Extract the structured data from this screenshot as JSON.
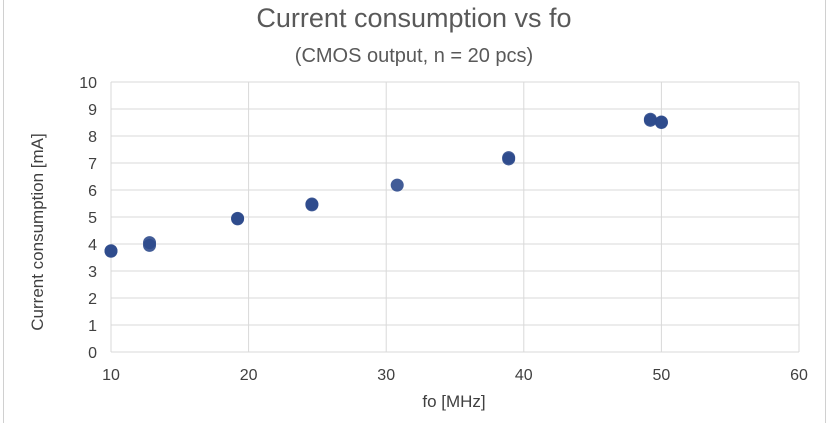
{
  "chart_data": {
    "type": "scatter",
    "title": "Current consumption vs fo",
    "subtitle": "(CMOS output, n = 20 pcs)",
    "xlabel": "fo [MHz]",
    "ylabel": "Current consumption [mA]",
    "xlim": [
      10,
      60
    ],
    "ylim": [
      0,
      10
    ],
    "xticks": [
      10,
      20,
      30,
      40,
      50,
      60
    ],
    "yticks": [
      0,
      1,
      2,
      3,
      4,
      5,
      6,
      7,
      8,
      9,
      10
    ],
    "grid": true,
    "legend": "none",
    "series": [
      {
        "color": "#2e4a8c",
        "points": [
          {
            "x": 10.0,
            "y": 3.75
          },
          {
            "x": 10.0,
            "y": 3.73
          },
          {
            "x": 12.8,
            "y": 3.95
          },
          {
            "x": 12.8,
            "y": 4.05
          },
          {
            "x": 19.2,
            "y": 4.95
          },
          {
            "x": 19.2,
            "y": 4.93
          },
          {
            "x": 24.6,
            "y": 5.48
          },
          {
            "x": 24.6,
            "y": 5.45
          },
          {
            "x": 30.8,
            "y": 6.18
          },
          {
            "x": 38.9,
            "y": 7.2
          },
          {
            "x": 38.9,
            "y": 7.15
          },
          {
            "x": 49.2,
            "y": 8.62
          },
          {
            "x": 49.2,
            "y": 8.58
          },
          {
            "x": 50.0,
            "y": 8.52
          },
          {
            "x": 50.0,
            "y": 8.5
          }
        ]
      }
    ]
  }
}
